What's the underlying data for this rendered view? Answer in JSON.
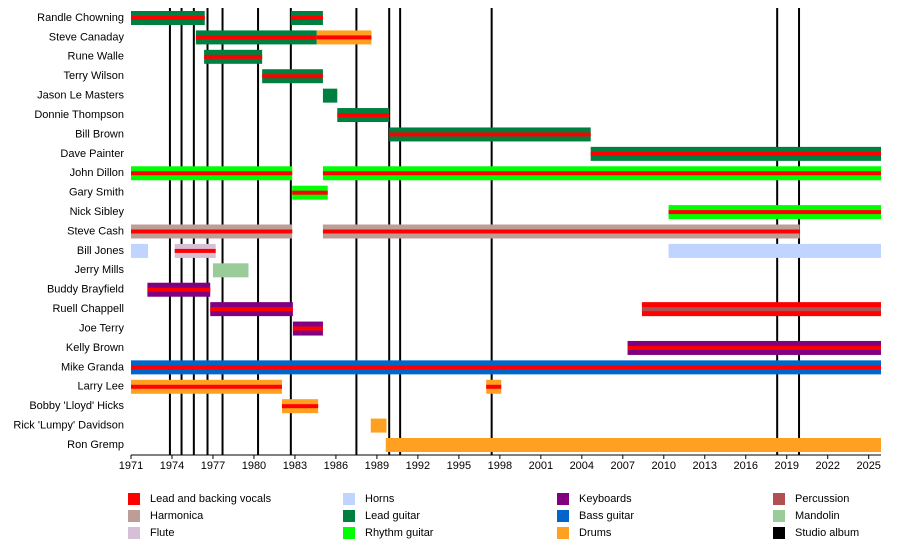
{
  "chart_data": {
    "type": "timeline",
    "xlim": [
      1971,
      2025.9
    ],
    "xticks": [
      1971,
      1974,
      1977,
      1980,
      1983,
      1986,
      1989,
      1992,
      1995,
      1998,
      2001,
      2004,
      2007,
      2010,
      2013,
      2016,
      2019,
      2022,
      2025
    ],
    "series": [
      {
        "name": "Lead and backing vocals",
        "color": "#ff0000"
      },
      {
        "name": "Harmonica",
        "color": "#bc9d98"
      },
      {
        "name": "Flute",
        "color": "#d8bfd8"
      },
      {
        "name": "Horns",
        "color": "#bfd4ff"
      },
      {
        "name": "Lead guitar",
        "color": "#008040"
      },
      {
        "name": "Rhythm guitar",
        "color": "#00ff00"
      },
      {
        "name": "Keyboards",
        "color": "#800080"
      },
      {
        "name": "Bass guitar",
        "color": "#0066cc"
      },
      {
        "name": "Drums",
        "color": "#ffa020"
      },
      {
        "name": "Percussion",
        "color": "#b05050"
      },
      {
        "name": "Mandolin",
        "color": "#99cc99"
      },
      {
        "name": "Studio album",
        "color": "#000000",
        "values": [
          1973.85,
          1974.7,
          1975.6,
          1976.6,
          1977.7,
          1980.3,
          1982.7,
          1987.5,
          1989.9,
          1990.7,
          1997.4,
          2018.3,
          2019.9
        ]
      }
    ],
    "members": [
      {
        "name": "Randle Chowning",
        "periods": [
          {
            "start": 1971,
            "end": 1976.4,
            "role": "Lead guitar",
            "stripe": "Lead and backing vocals"
          },
          {
            "start": 1982.7,
            "end": 1985.05,
            "role": "Lead guitar",
            "stripe": "Lead and backing vocals"
          }
        ]
      },
      {
        "name": "Steve Canaday",
        "periods": [
          {
            "start": 1975.75,
            "end": 1984.6,
            "role": "Lead guitar",
            "stripe": "Lead and backing vocals"
          },
          {
            "start": 1984.6,
            "end": 1988.6,
            "role": "Drums",
            "stripe": "Lead and backing vocals"
          }
        ]
      },
      {
        "name": "Rune Walle",
        "periods": [
          {
            "start": 1976.35,
            "end": 1980.6,
            "role": "Lead guitar",
            "stripe": "Lead and backing vocals"
          }
        ]
      },
      {
        "name": "Terry Wilson",
        "periods": [
          {
            "start": 1980.6,
            "end": 1985.05,
            "role": "Lead guitar",
            "stripe": "Lead and backing vocals"
          }
        ]
      },
      {
        "name": "Jason Le Masters",
        "periods": [
          {
            "start": 1985.05,
            "end": 1986.1,
            "role": "Lead guitar"
          }
        ]
      },
      {
        "name": "Donnie Thompson",
        "periods": [
          {
            "start": 1986.1,
            "end": 1989.9,
            "role": "Lead guitar",
            "stripe": "Lead and backing vocals"
          }
        ]
      },
      {
        "name": "Bill Brown",
        "periods": [
          {
            "start": 1989.9,
            "end": 2004.65,
            "role": "Lead guitar",
            "stripe": "Lead and backing vocals"
          }
        ]
      },
      {
        "name": "Dave Painter",
        "periods": [
          {
            "start": 2004.65,
            "end": 2025.9,
            "role": "Lead guitar",
            "stripe": "Lead and backing vocals"
          }
        ]
      },
      {
        "name": "John Dillon",
        "periods": [
          {
            "start": 1971,
            "end": 1982.8,
            "role": "Rhythm guitar",
            "stripe": "Lead and backing vocals"
          },
          {
            "start": 1985.05,
            "end": 2025.9,
            "role": "Rhythm guitar",
            "stripe": "Lead and backing vocals"
          }
        ]
      },
      {
        "name": "Gary Smith",
        "periods": [
          {
            "start": 1982.8,
            "end": 1985.4,
            "role": "Rhythm guitar",
            "stripe": "Lead and backing vocals"
          }
        ]
      },
      {
        "name": "Nick Sibley",
        "periods": [
          {
            "start": 2010.35,
            "end": 2025.9,
            "role": "Rhythm guitar",
            "stripe": "Lead and backing vocals"
          }
        ]
      },
      {
        "name": "Steve Cash",
        "periods": [
          {
            "start": 1971,
            "end": 1982.8,
            "role": "Harmonica",
            "stripe": "Lead and backing vocals"
          },
          {
            "start": 1985.05,
            "end": 2019.95,
            "role": "Harmonica",
            "stripe": "Lead and backing vocals"
          }
        ]
      },
      {
        "name": "Bill Jones",
        "periods": [
          {
            "start": 1971,
            "end": 1972.25,
            "role": "Horns"
          },
          {
            "start": 1974.2,
            "end": 1977.2,
            "role": "Flute",
            "stripe": "Lead and backing vocals"
          },
          {
            "start": 2010.35,
            "end": 2025.9,
            "role": "Horns"
          }
        ]
      },
      {
        "name": "Jerry Mills",
        "periods": [
          {
            "start": 1977,
            "end": 1979.6,
            "role": "Mandolin"
          }
        ]
      },
      {
        "name": "Buddy Brayfield",
        "periods": [
          {
            "start": 1972.2,
            "end": 1976.8,
            "role": "Keyboards",
            "stripe": "Lead and backing vocals"
          }
        ]
      },
      {
        "name": "Ruell Chappell",
        "periods": [
          {
            "start": 1976.8,
            "end": 1982.85,
            "role": "Keyboards",
            "stripe": "Lead and backing vocals"
          },
          {
            "start": 2008.4,
            "end": 2025.9,
            "role": "Lead and backing vocals",
            "stripe": "Percussion"
          }
        ]
      },
      {
        "name": "Joe Terry",
        "periods": [
          {
            "start": 1982.85,
            "end": 1985.05,
            "role": "Keyboards",
            "stripe": "Lead and backing vocals"
          }
        ]
      },
      {
        "name": "Kelly Brown",
        "periods": [
          {
            "start": 2007.35,
            "end": 2025.9,
            "role": "Keyboards",
            "stripe": "Lead and backing vocals"
          }
        ]
      },
      {
        "name": "Mike Granda",
        "periods": [
          {
            "start": 1971,
            "end": 2025.9,
            "role": "Bass guitar",
            "stripe": "Lead and backing vocals"
          }
        ]
      },
      {
        "name": "Larry Lee",
        "periods": [
          {
            "start": 1971,
            "end": 1982.05,
            "role": "Drums",
            "stripe": "Lead and backing vocals"
          },
          {
            "start": 1997,
            "end": 1998.1,
            "role": "Drums",
            "stripe": "Lead and backing vocals"
          }
        ]
      },
      {
        "name": "Bobby 'Lloyd' Hicks",
        "periods": [
          {
            "start": 1982.05,
            "end": 1984.7,
            "role": "Drums",
            "stripe": "Lead and backing vocals"
          }
        ]
      },
      {
        "name": "Rick 'Lumpy' Davidson",
        "periods": [
          {
            "start": 1988.55,
            "end": 1989.7,
            "role": "Drums"
          }
        ]
      },
      {
        "name": "Ron Gremp",
        "periods": [
          {
            "start": 1989.65,
            "end": 2025.9,
            "role": "Drums"
          }
        ]
      }
    ]
  }
}
